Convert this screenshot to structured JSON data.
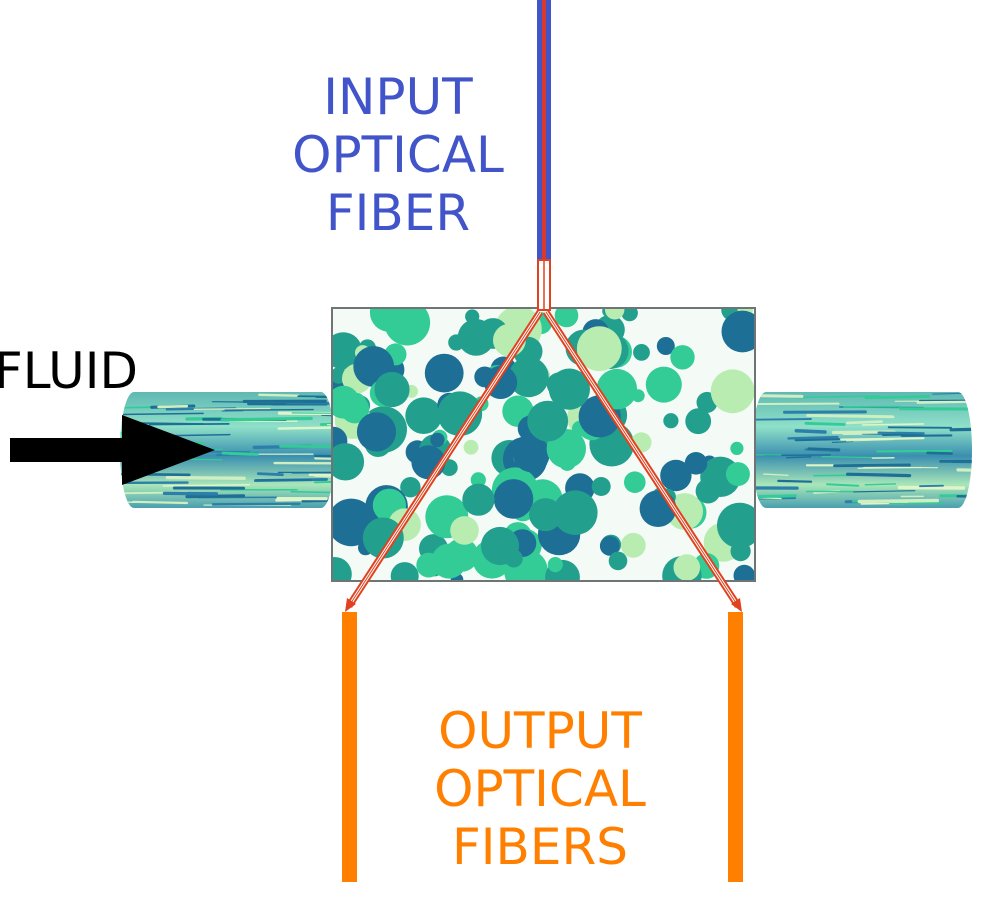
{
  "labels": {
    "input": [
      "INPUT",
      "OPTICAL",
      "FIBER"
    ],
    "output": [
      "OUTPUT",
      "OPTICAL",
      "FIBERS"
    ],
    "fluid": "FLUID"
  },
  "colors": {
    "input_fiber": "#4154c9",
    "input_fiber_core": "#d83a2a",
    "output_fiber": "#ff8000",
    "light_path": "#e0411f",
    "arrow": "#000000",
    "particle_dark": "#1e6f95",
    "particle_mid": "#23a08d",
    "particle_light": "#33cc96",
    "particle_pale": "#b8ecb0",
    "pipe_base": "#7fd0c0"
  },
  "icons": {
    "arrow": "right-arrow-icon"
  }
}
